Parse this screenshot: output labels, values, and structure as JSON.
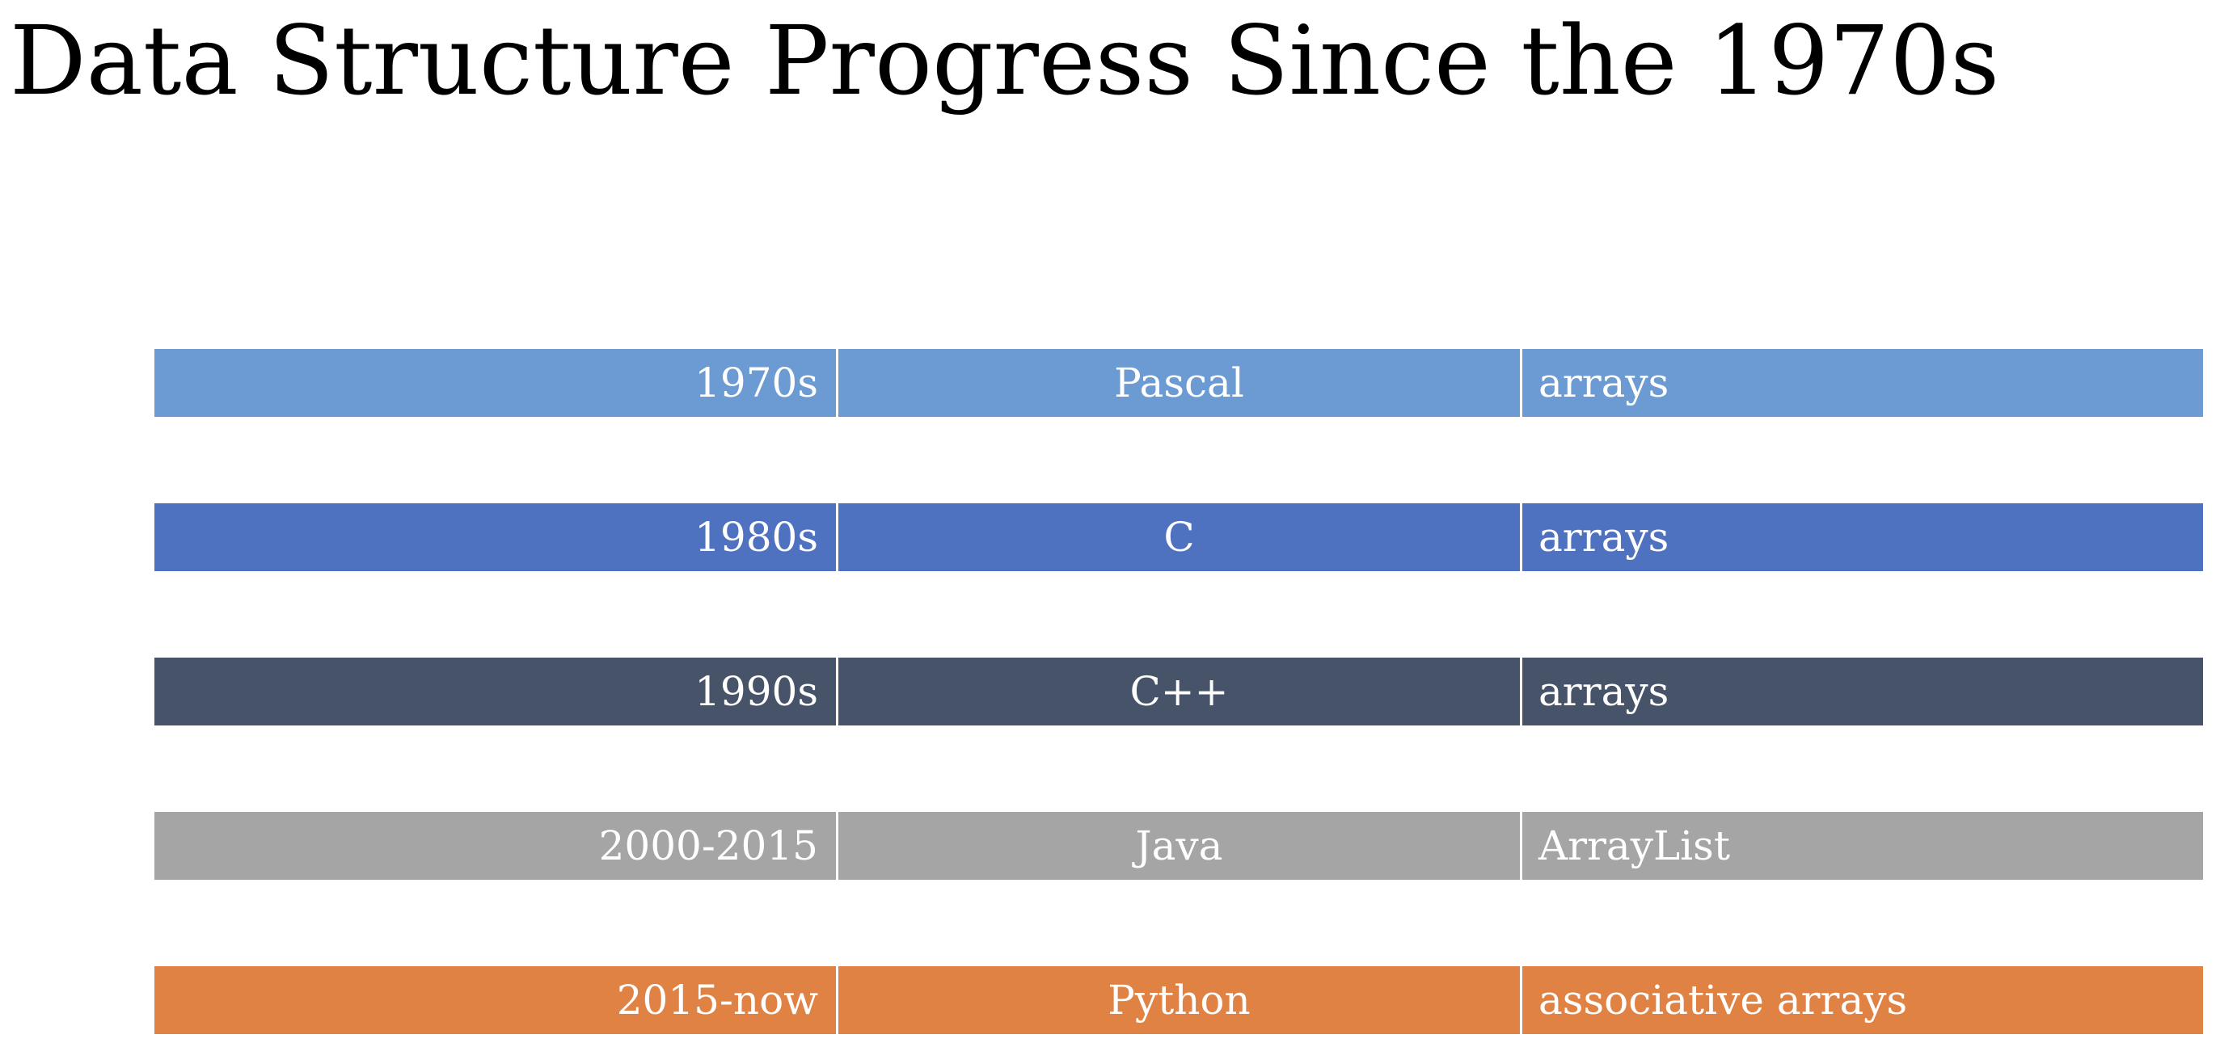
{
  "title": "Data Structure Progress Since the 1970s",
  "rows": [
    {
      "era": "1970s",
      "language": "Pascal",
      "structure": "arrays",
      "color": "#6b9bd2"
    },
    {
      "era": "1980s",
      "language": "C",
      "structure": "arrays",
      "color": "#4e72bf"
    },
    {
      "era": "1990s",
      "language": "C++",
      "structure": "arrays",
      "color": "#465368"
    },
    {
      "era": "2000-2015",
      "language": "Java",
      "structure": "ArrayList",
      "color": "#a5a5a5"
    },
    {
      "era": "2015-now",
      "language": "Python",
      "structure": "associative arrays",
      "color": "#df8244"
    }
  ]
}
